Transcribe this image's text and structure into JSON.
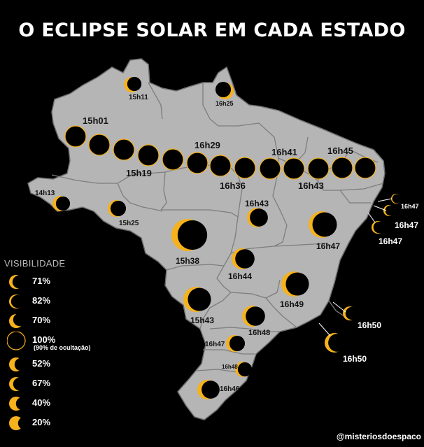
{
  "title": "O ECLIPSE SOLAR EM CADA ESTADO",
  "colors": {
    "eclipse": "#f6b21c",
    "moon": "#000000",
    "land": "#b5b5b5",
    "border": "#8a8a8a",
    "background": "#000000"
  },
  "map_labels": {
    "rr": "15h11",
    "ap": "16h25",
    "path_1": "15h01",
    "path_2": "15h19",
    "path_3": "16h29",
    "path_4": "16h36",
    "path_5": "16h41",
    "path_6": "16h43",
    "path_7": "16h45",
    "ac": "14h13",
    "ro": "15h25",
    "mt": "15h38",
    "to": "16h43",
    "ba": "16h47",
    "go": "16h44",
    "mg": "16h49",
    "ms": "15h43",
    "sp": "16h48",
    "pr": "16h47",
    "sc": "16h48",
    "rs": "16h46",
    "es": "16h50",
    "rj": "16h50",
    "pb": "16h47",
    "pe": "16h47",
    "al": "16h47"
  },
  "legend": {
    "title": "VISIBILIDADE",
    "items": [
      {
        "value": "71%",
        "icon": "crescent-eclipse-icon"
      },
      {
        "value": "82%",
        "icon": "thin-crescent-eclipse-icon"
      },
      {
        "value": "70%",
        "icon": "crescent-eclipse-icon"
      },
      {
        "value": "100%",
        "icon": "total-eclipse-icon"
      },
      {
        "value": "52%",
        "icon": "half-eclipse-icon"
      },
      {
        "value": "67%",
        "icon": "crescent-eclipse-icon"
      },
      {
        "value": "40%",
        "icon": "half-eclipse-icon"
      },
      {
        "value": "20%",
        "icon": "gibbous-eclipse-icon"
      }
    ],
    "note": "(90% de ocultação)"
  },
  "credit": "@misteriosdoespaco"
}
